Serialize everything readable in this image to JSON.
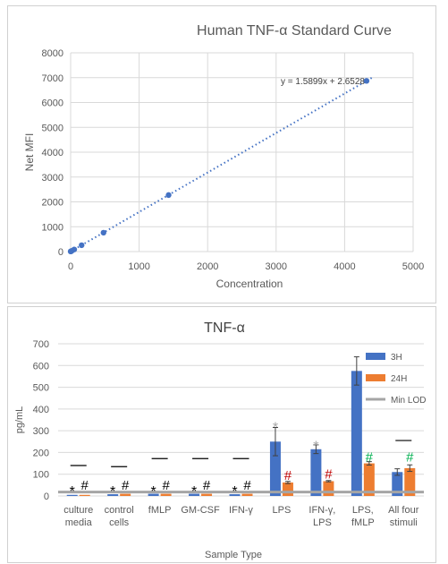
{
  "chart_data": [
    {
      "type": "scatter",
      "title": "Human TNF-α Standard Curve",
      "xlabel": "Concentration",
      "ylabel": "Net MFI",
      "xlim": [
        0,
        5000
      ],
      "ylim": [
        0,
        8000
      ],
      "x_ticks": [
        0,
        1000,
        2000,
        3000,
        4000,
        5000
      ],
      "y_ticks": [
        0,
        1000,
        2000,
        3000,
        4000,
        5000,
        6000,
        7000,
        8000
      ],
      "x_tick_labels": [
        "0",
        "1000",
        "2000",
        "3000",
        "4000",
        "5000"
      ],
      "y_tick_labels": [
        "0",
        "1000",
        "2000",
        "3000",
        "4000",
        "5000",
        "6000",
        "7000",
        "8000"
      ],
      "grid": true,
      "series": [
        {
          "x": [
            0,
            5,
            16,
            52,
            160,
            480,
            1430,
            4320
          ],
          "y": [
            5,
            10,
            28,
            85,
            255,
            760,
            2275,
            6870
          ]
        }
      ],
      "trendline": {
        "label": "y = 1.5899x + 2.6528",
        "slope": 1.5899,
        "intercept": 2.6528,
        "style": "dotted"
      },
      "colors": {
        "points": "#4472c4",
        "grid": "#d9d9d9",
        "text": "#595959"
      }
    },
    {
      "type": "bar",
      "title": "TNF-α",
      "xlabel": "Sample Type",
      "ylabel": "pg/mL",
      "ylim": [
        0,
        700
      ],
      "y_ticks": [
        0,
        100,
        200,
        300,
        400,
        500,
        600,
        700
      ],
      "y_tick_labels": [
        "0",
        "100",
        "200",
        "300",
        "400",
        "500",
        "600",
        "700"
      ],
      "grid": true,
      "legend_position": "top-right",
      "categories": [
        [
          "culture",
          "media"
        ],
        [
          "control",
          "cells"
        ],
        [
          "fMLP"
        ],
        [
          "GM-CSF"
        ],
        [
          "IFN-γ"
        ],
        [
          "LPS"
        ],
        [
          "IFN-γ,",
          "LPS"
        ],
        [
          "LPS,",
          "fMLP"
        ],
        [
          "All four",
          "stimuli"
        ]
      ],
      "series": [
        {
          "name": "3H",
          "color": "#4472c4",
          "values": [
            5,
            8,
            10,
            10,
            8,
            250,
            215,
            575,
            110
          ],
          "errors": [
            0,
            0,
            0,
            0,
            0,
            65,
            20,
            65,
            15
          ]
        },
        {
          "name": "24H",
          "color": "#ed7d31",
          "values": [
            5,
            10,
            10,
            10,
            10,
            62,
            68,
            150,
            128
          ],
          "errors": [
            0,
            0,
            0,
            0,
            0,
            5,
            3,
            8,
            15
          ]
        }
      ],
      "min_lod": {
        "name": "Min LOD",
        "value": 18,
        "color": "#a5a5a5"
      },
      "annotations": [
        {
          "category": 0,
          "series": "3H",
          "symbol": "*",
          "y": 42,
          "color": "#000000"
        },
        {
          "category": 1,
          "series": "3H",
          "symbol": "*",
          "y": 42,
          "color": "#000000"
        },
        {
          "category": 2,
          "series": "3H",
          "symbol": "*",
          "y": 42,
          "color": "#000000"
        },
        {
          "category": 3,
          "series": "3H",
          "symbol": "*",
          "y": 42,
          "color": "#000000"
        },
        {
          "category": 4,
          "series": "3H",
          "symbol": "*",
          "y": 42,
          "color": "#000000"
        },
        {
          "category": 5,
          "series": "3H",
          "symbol": "*",
          "y": 335,
          "color": "#a5a5a5"
        },
        {
          "category": 6,
          "series": "3H",
          "symbol": "*",
          "y": 250,
          "color": "#a5a5a5"
        },
        {
          "category": 0,
          "series": "24H",
          "symbol": "#",
          "y": 50,
          "color": "#000000"
        },
        {
          "category": 1,
          "series": "24H",
          "symbol": "#",
          "y": 50,
          "color": "#000000"
        },
        {
          "category": 2,
          "series": "24H",
          "symbol": "#",
          "y": 50,
          "color": "#000000"
        },
        {
          "category": 3,
          "series": "24H",
          "symbol": "#",
          "y": 50,
          "color": "#000000"
        },
        {
          "category": 4,
          "series": "24H",
          "symbol": "#",
          "y": 50,
          "color": "#000000"
        },
        {
          "category": 5,
          "series": "24H",
          "symbol": "#",
          "y": 95,
          "color": "#c00000"
        },
        {
          "category": 6,
          "series": "24H",
          "symbol": "#",
          "y": 100,
          "color": "#c00000"
        },
        {
          "category": 7,
          "series": "24H",
          "symbol": "#",
          "y": 180,
          "color": "#00b050"
        },
        {
          "category": 8,
          "series": "24H",
          "symbol": "#",
          "y": 180,
          "color": "#00b050"
        }
      ],
      "reference_dashes": [
        {
          "category": 0,
          "y": 140
        },
        {
          "category": 1,
          "y": 135
        },
        {
          "category": 2,
          "y": 172
        },
        {
          "category": 3,
          "y": 172
        },
        {
          "category": 4,
          "y": 172
        },
        {
          "category": 8,
          "y": 255
        }
      ],
      "colors": {
        "grid": "#d9d9d9",
        "text": "#595959"
      }
    }
  ]
}
